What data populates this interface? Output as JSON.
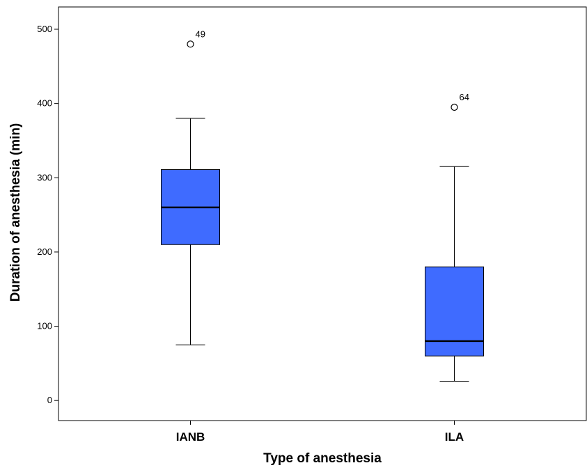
{
  "chart_data": {
    "type": "boxplot",
    "xlabel": "Type of anesthesia",
    "ylabel": "Duration of anesthesia (min)",
    "ylim": [
      -27,
      530
    ],
    "yticks": [
      0,
      100,
      200,
      300,
      400,
      500
    ],
    "grid": false,
    "legend": "none",
    "box_color": "#3f6bff",
    "categories": [
      "IANB",
      "ILA"
    ],
    "series": [
      {
        "category": "IANB",
        "whisker_low": 75,
        "q1": 210,
        "median": 260,
        "q3": 311,
        "whisker_high": 380,
        "outliers": [
          {
            "value": 480,
            "label": "49"
          }
        ]
      },
      {
        "category": "ILA",
        "whisker_low": 26,
        "q1": 60,
        "median": 80,
        "q3": 180,
        "whisker_high": 315,
        "outliers": [
          {
            "value": 395,
            "label": "64"
          }
        ]
      }
    ]
  }
}
